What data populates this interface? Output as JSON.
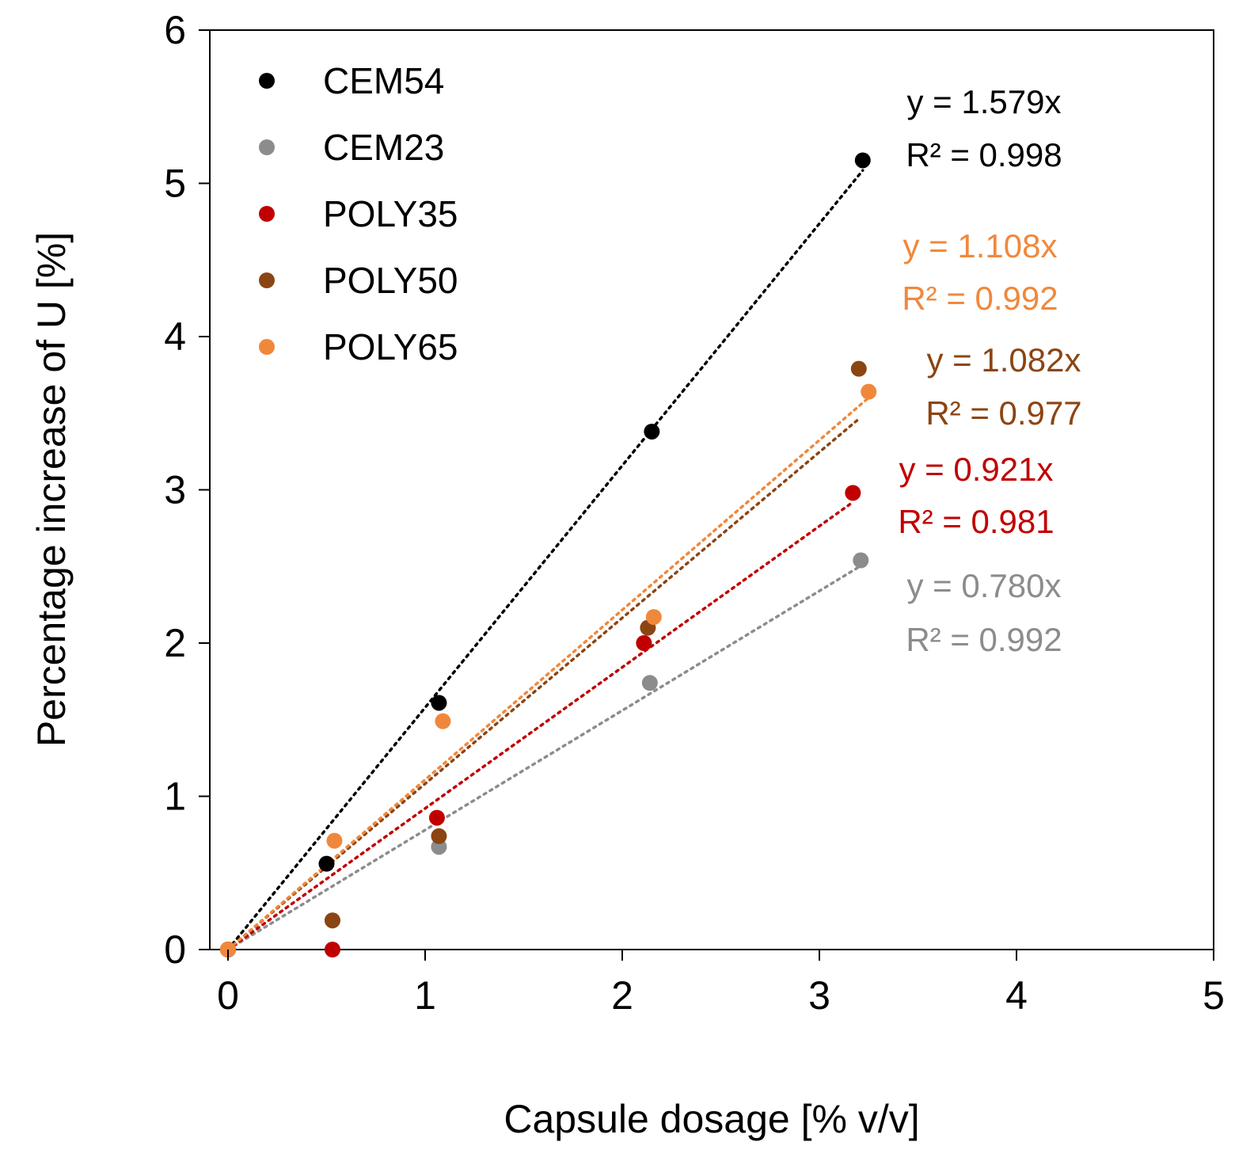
{
  "chart_data": {
    "type": "scatter",
    "title": "",
    "xlabel": "Capsule dosage [% v/v]",
    "ylabel": "Percentage increase of U [%]",
    "xlim": [
      0,
      5
    ],
    "ylim": [
      0,
      6
    ],
    "xticks": [
      0,
      1,
      2,
      3,
      4,
      5
    ],
    "yticks": [
      0,
      1,
      2,
      3,
      4,
      5,
      6
    ],
    "xtick_labels": [
      "0",
      "1",
      "2",
      "3",
      "4",
      "5"
    ],
    "ytick_labels": [
      "0",
      "1",
      "2",
      "3",
      "4",
      "5",
      "6"
    ],
    "grid": false,
    "legend_position": "top-left",
    "series": [
      {
        "name": "CEM54",
        "color": "#000000",
        "x": [
          0,
          0.5,
          1.07,
          2.15,
          3.22
        ],
        "y": [
          0,
          0.56,
          1.61,
          3.38,
          5.15
        ],
        "trend_slope": 1.579,
        "trend_xmax": 3.22,
        "equation": "y = 1.579x",
        "r2": "R² = 0.998"
      },
      {
        "name": "CEM23",
        "color": "#8c8c8c",
        "x": [
          0,
          0.53,
          1.07,
          2.14,
          3.21
        ],
        "y": [
          0,
          0.19,
          0.67,
          1.74,
          2.54
        ],
        "trend_slope": 0.78,
        "trend_xmax": 3.21,
        "equation": "y = 0.780x",
        "r2": "R² = 0.992"
      },
      {
        "name": "POLY35",
        "color": "#c00000",
        "x": [
          0,
          0.53,
          1.06,
          2.11,
          3.17
        ],
        "y": [
          0,
          0,
          0.86,
          2.0,
          2.98
        ],
        "trend_slope": 0.921,
        "trend_xmax": 3.17,
        "equation": "y = 0.921x",
        "r2": "R² = 0.981"
      },
      {
        "name": "POLY50",
        "color": "#8b4513",
        "x": [
          0,
          0.53,
          1.07,
          2.13,
          3.2
        ],
        "y": [
          0,
          0.19,
          0.74,
          2.1,
          3.79
        ],
        "trend_slope": 1.082,
        "trend_xmax": 3.2,
        "equation": "y = 1.082x",
        "r2": "R² = 0.977"
      },
      {
        "name": "POLY65",
        "color": "#f0883c",
        "x": [
          0,
          0.54,
          1.09,
          2.16,
          3.25
        ],
        "y": [
          0,
          0.71,
          1.49,
          2.17,
          3.64
        ],
        "trend_slope": 1.108,
        "trend_xmax": 3.25,
        "equation": "y = 1.108x",
        "r2": "R² = 0.992"
      }
    ]
  }
}
